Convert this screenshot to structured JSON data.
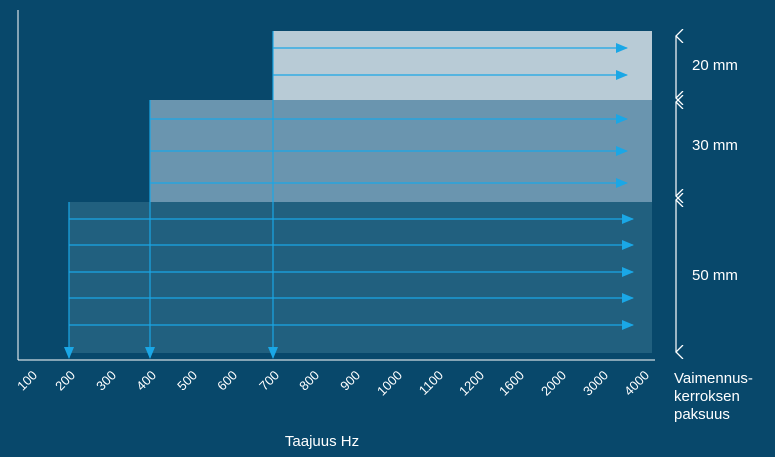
{
  "chart_data": {
    "type": "diagram",
    "xlabel": "Taajuus Hz",
    "x_ticks": [
      "100",
      "200",
      "300",
      "400",
      "500",
      "600",
      "700",
      "800",
      "900",
      "1000",
      "1100",
      "1200",
      "1600",
      "2000",
      "3000",
      "4000"
    ],
    "layers": [
      {
        "label": "20 mm",
        "start_tick": "700",
        "arrow_rows": 2
      },
      {
        "label": "30 mm",
        "start_tick": "400",
        "arrow_rows": 3
      },
      {
        "label": "50 mm",
        "start_tick": "200",
        "arrow_rows": 5
      }
    ],
    "thickness_label_lines": [
      "Vaimennus-",
      "kerroksen",
      "paksuus"
    ],
    "colors": {
      "background": "#08486b",
      "layer_20mm": "#b8cbd6",
      "layer_30mm": "#6a95af",
      "layer_50mm": "#21607f",
      "arrow": "#1aa7e6",
      "axis": "#ffffff"
    }
  }
}
